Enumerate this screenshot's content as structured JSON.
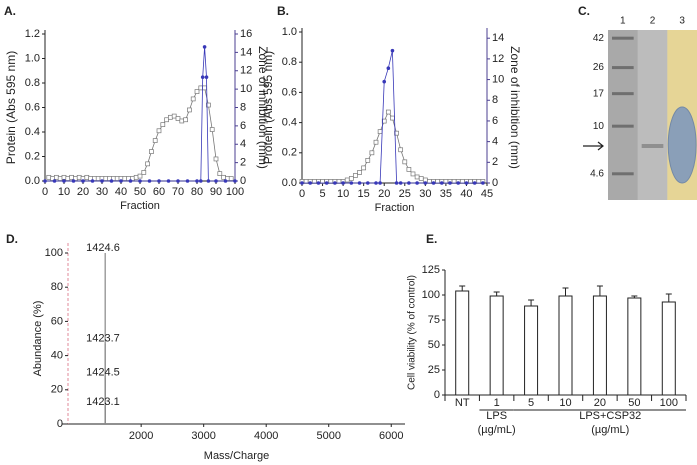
{
  "chart_data": [
    {
      "type": "line",
      "label": "A.",
      "x_label": "Fraction",
      "y_label": "Protein (Abs 595 nm)",
      "y2_label": "Zone of inhibition (mm)",
      "xlim": [
        0,
        100
      ],
      "xticks": [
        0,
        10,
        20,
        30,
        40,
        50,
        60,
        70,
        80,
        90,
        100
      ],
      "ylim": [
        0,
        1.2
      ],
      "yticks": [
        {
          "value": 0,
          "label": "0.0"
        },
        0.2,
        0.4,
        0.6,
        0.8,
        {
          "value": 1,
          "label": "1.0"
        },
        1.2
      ],
      "y2lim": [
        0,
        16
      ],
      "y2ticks": [
        0,
        2,
        4,
        6,
        8,
        10,
        12,
        14,
        16
      ],
      "y2color": "#4b3f91",
      "series": [
        {
          "color": "#777777",
          "marker": "square",
          "x": [
            2,
            4,
            6,
            8,
            10,
            12,
            14,
            16,
            18,
            20,
            22,
            24,
            26,
            28,
            30,
            32,
            34,
            36,
            38,
            40,
            42,
            44,
            46,
            48,
            50,
            52,
            54,
            56,
            58,
            60,
            62,
            64,
            66,
            68,
            70,
            72,
            74,
            76,
            78,
            80,
            82,
            84,
            86,
            88,
            90,
            92,
            94,
            96,
            98
          ],
          "values": [
            0.03,
            0.02,
            0.03,
            0.02,
            0.03,
            0.02,
            0.03,
            0.02,
            0.03,
            0.02,
            0.03,
            0.02,
            0.02,
            0.02,
            0.02,
            0.02,
            0.02,
            0.02,
            0.02,
            0.02,
            0.02,
            0.02,
            0.02,
            0.03,
            0.04,
            0.07,
            0.14,
            0.24,
            0.33,
            0.41,
            0.46,
            0.5,
            0.52,
            0.53,
            0.51,
            0.49,
            0.5,
            0.58,
            0.67,
            0.73,
            0.76,
            0.76,
            0.62,
            0.42,
            0.18,
            0.06,
            0.03,
            0.02,
            0.02
          ]
        },
        {
          "color": "#3838b8",
          "marker": "circle",
          "axis": "y2",
          "x": [
            0,
            5,
            10,
            15,
            20,
            25,
            30,
            35,
            40,
            45,
            50,
            55,
            60,
            65,
            70,
            75,
            80,
            82,
            83,
            84,
            85,
            86,
            90,
            95,
            100
          ],
          "values": [
            0,
            0,
            0,
            0,
            0,
            0,
            0,
            0,
            0,
            0,
            0,
            0,
            0,
            0,
            0,
            0,
            0,
            0,
            11.3,
            14.6,
            11.3,
            0,
            0,
            0,
            0
          ]
        }
      ]
    },
    {
      "type": "line",
      "label": "B.",
      "x_label": "Fraction",
      "y_label": "Protein (Abs 595 nm)",
      "y2_label": "Zone of inhibition (mm)",
      "xlim": [
        0,
        45
      ],
      "xticks": [
        0,
        5,
        10,
        15,
        20,
        25,
        30,
        35,
        40,
        45
      ],
      "ylim": [
        0,
        1
      ],
      "yticks": [
        {
          "value": 0,
          "label": "0.0"
        },
        0.2,
        0.4,
        0.6,
        0.8,
        {
          "value": 1,
          "label": "1.0"
        }
      ],
      "y2lim": [
        0,
        14.6
      ],
      "y2ticks": [
        0,
        2,
        4,
        6,
        8,
        10,
        12,
        14
      ],
      "y2color": "#4b3f91",
      "series": [
        {
          "color": "#777777",
          "marker": "square",
          "x": [
            0,
            1,
            2,
            3,
            4,
            5,
            6,
            7,
            8,
            9,
            10,
            11,
            12,
            13,
            14,
            15,
            16,
            17,
            18,
            19,
            20,
            21,
            22,
            23,
            24,
            25,
            26,
            27,
            28,
            29,
            30,
            31,
            32,
            33,
            34,
            35,
            36,
            37,
            38,
            39,
            40,
            41,
            42,
            43,
            44
          ],
          "values": [
            0.01,
            0.01,
            0.01,
            0.01,
            0.01,
            0.01,
            0.01,
            0.01,
            0.01,
            0.01,
            0.01,
            0.02,
            0.03,
            0.05,
            0.07,
            0.1,
            0.15,
            0.2,
            0.27,
            0.34,
            0.41,
            0.47,
            0.43,
            0.33,
            0.22,
            0.14,
            0.09,
            0.06,
            0.04,
            0.03,
            0.02,
            0.01,
            0.01,
            0.01,
            0.01,
            0.01,
            0.01,
            0.01,
            0.01,
            0.01,
            0.01,
            0.01,
            0.01,
            0.01,
            0.01
          ]
        },
        {
          "color": "#3838b8",
          "marker": "circle",
          "axis": "y2",
          "x": [
            0,
            2,
            4,
            6,
            8,
            10,
            12,
            14,
            16,
            18,
            19,
            20,
            21,
            22,
            23,
            24,
            26,
            28,
            30,
            32,
            34,
            36,
            38,
            40,
            42,
            44
          ],
          "values": [
            0,
            0,
            0,
            0,
            0,
            0,
            0,
            0,
            0,
            0,
            0,
            9.8,
            11.1,
            12.8,
            0,
            0,
            0,
            0,
            0,
            0,
            0,
            0,
            0,
            0,
            0,
            0
          ]
        }
      ]
    },
    {
      "type": "gel",
      "label": "C.",
      "categories": [
        "1",
        "2",
        "3"
      ],
      "log": true,
      "ylim": [
        48,
        3
      ],
      "yticks": [
        42,
        26,
        17,
        10,
        4.6
      ]
    },
    {
      "type": "spectrum",
      "label": "D.",
      "x_label": "Mass/Charge",
      "y_label": "Abundance (%)",
      "xlim": [
        830,
        6220
      ],
      "xticks": [
        2000,
        3000,
        4000,
        5000,
        6000
      ],
      "ylim": [
        0,
        100
      ],
      "yticks": [
        0,
        20,
        40,
        60,
        80,
        100
      ],
      "color": "#888888",
      "x": [
        1424.6,
        1423.7,
        1424.5,
        1423.1
      ],
      "values": [
        100,
        47,
        27,
        10
      ]
    },
    {
      "type": "bar",
      "label": "E.",
      "y_label": "Cell viability (% of control)",
      "categories": [
        "NT",
        "1",
        "5",
        "10",
        "20",
        "50",
        "100"
      ],
      "values": [
        104,
        99,
        89,
        99,
        99,
        97,
        93
      ],
      "errors": [
        5,
        4,
        6,
        8,
        10,
        2,
        8
      ],
      "ylim": [
        0,
        125
      ],
      "yticks": [
        0,
        25,
        50,
        75,
        100,
        125
      ],
      "color": "#ffffff",
      "groups": [
        {
          "label": "LPS",
          "unit": "(µg/mL)"
        },
        {
          "label": "LPS+CSP32",
          "unit": "(µg/mL)"
        }
      ]
    }
  ]
}
